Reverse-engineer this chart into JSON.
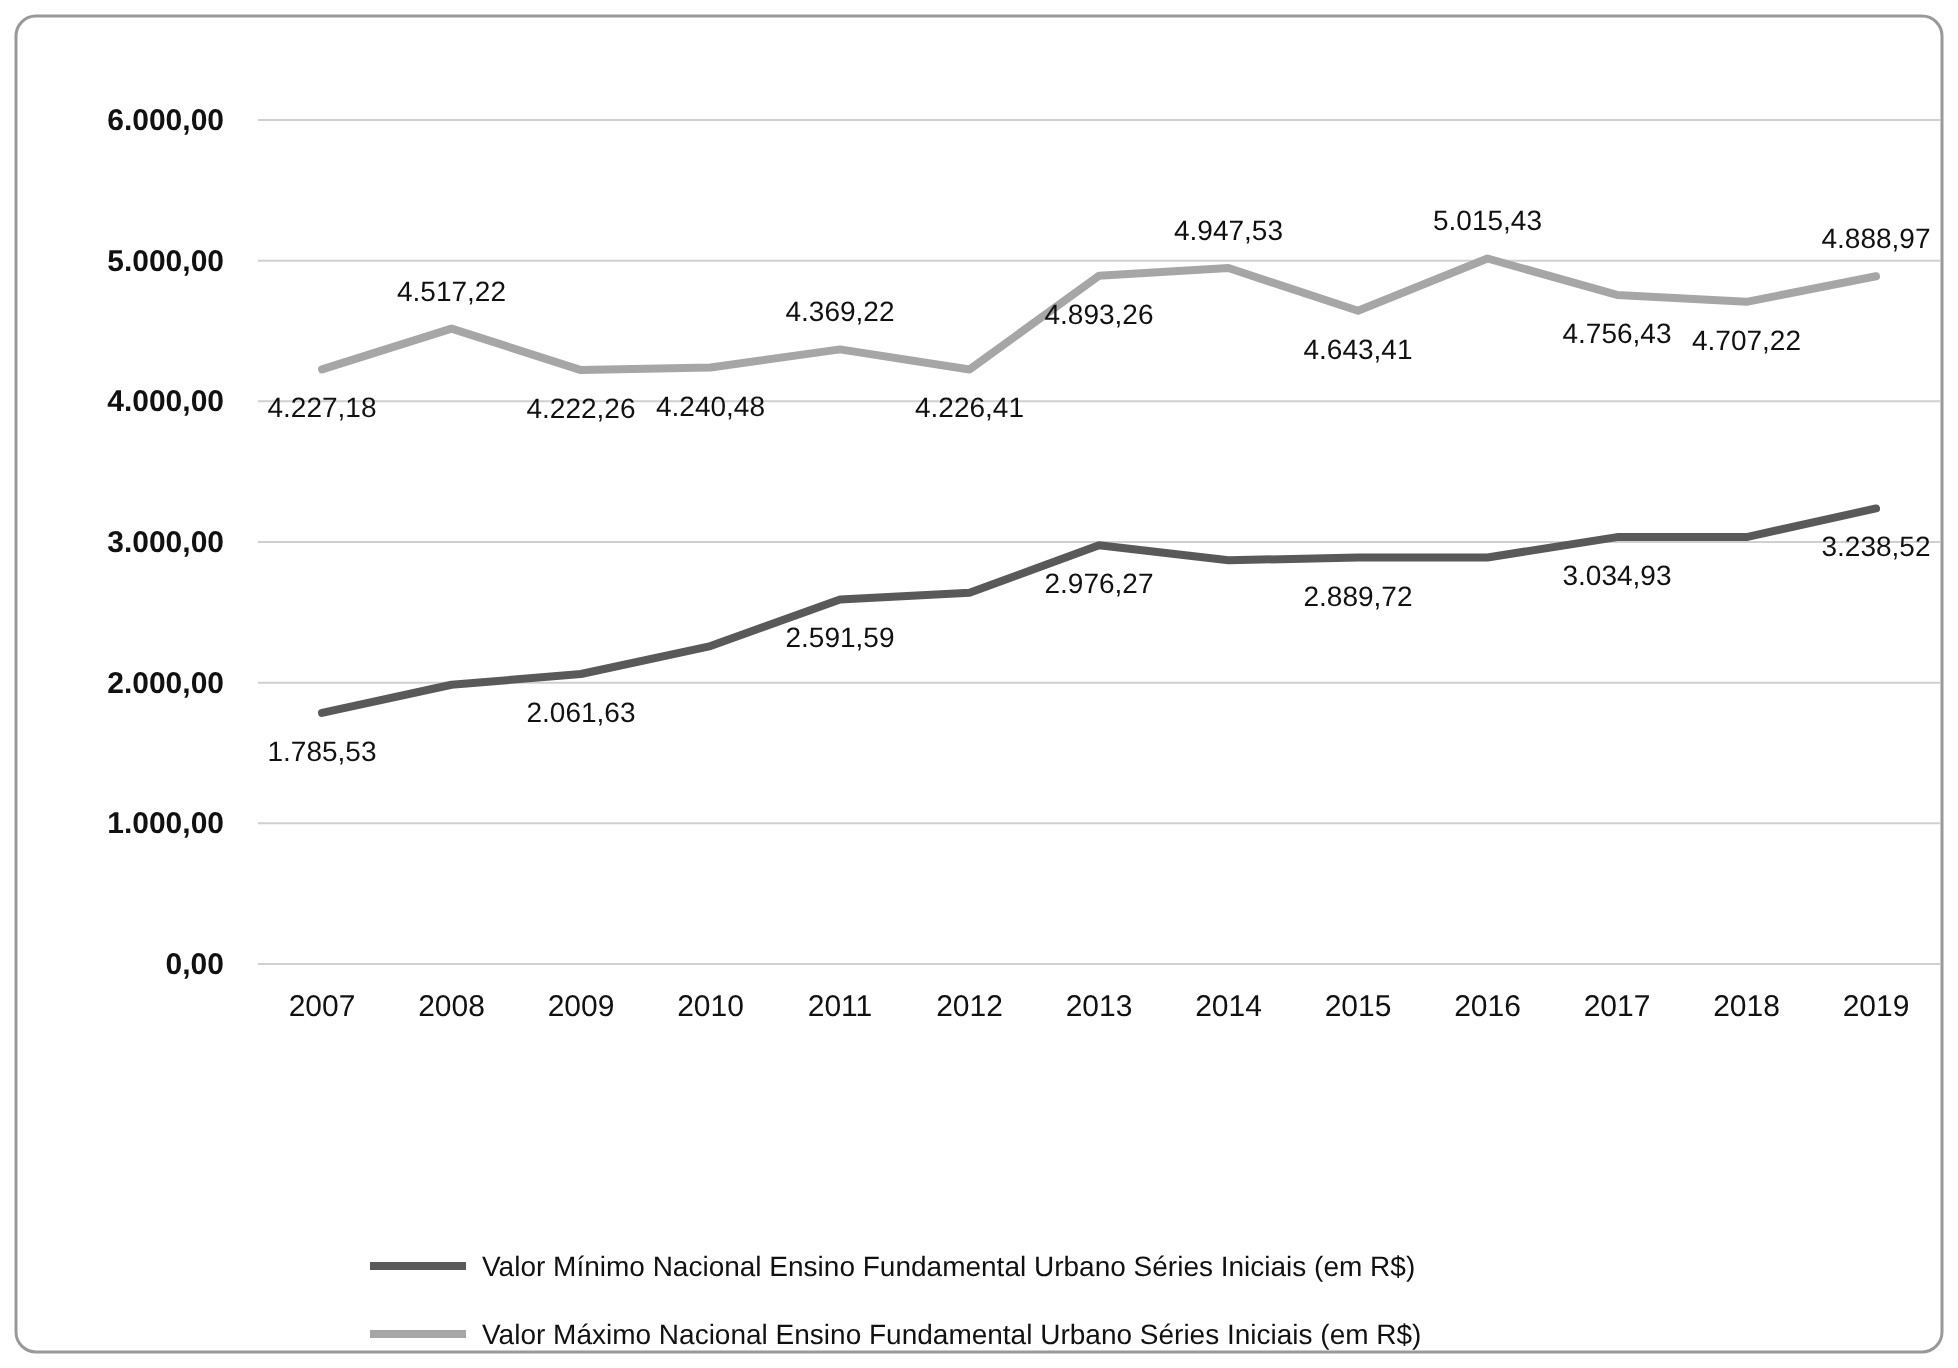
{
  "chart_data": {
    "type": "line",
    "categories": [
      "2007",
      "2008",
      "2009",
      "2010",
      "2011",
      "2012",
      "2013",
      "2014",
      "2015",
      "2016",
      "2017",
      "2018",
      "2019"
    ],
    "ylim": [
      0,
      6000
    ],
    "yticks": [
      {
        "value": 0,
        "label": "0,00"
      },
      {
        "value": 1000,
        "label": "1.000,00"
      },
      {
        "value": 2000,
        "label": "2.000,00"
      },
      {
        "value": 3000,
        "label": "3.000,00"
      },
      {
        "value": 4000,
        "label": "4.000,00"
      },
      {
        "value": 5000,
        "label": "5.000,00"
      },
      {
        "value": 6000,
        "label": "6.000,00"
      }
    ],
    "grid": "y",
    "legend": "bottom",
    "marker": "none",
    "line_style": "solid",
    "series": [
      {
        "name": "Valor Mínimo Nacional Ensino Fundamental Urbano Séries Iniciais (em R$)",
        "color": "#595959",
        "values": [
          1785.53,
          1985,
          2061.63,
          2260,
          2591.59,
          2640,
          2976.27,
          2870,
          2889.72,
          2890,
          3034.93,
          3035,
          3238.52
        ],
        "value_labels": [
          "1.785,53",
          null,
          "2.061,63",
          null,
          "2.591,59",
          null,
          "2.976,27",
          null,
          "2.889,72",
          null,
          "3.034,93",
          null,
          "3.238,52"
        ]
      },
      {
        "name": "Valor Máximo Nacional Ensino Fundamental Urbano Séries Iniciais (em R$)",
        "color": "#a6a6a6",
        "values": [
          4227.18,
          4517.22,
          4222.26,
          4240.48,
          4369.22,
          4226.41,
          4893.26,
          4947.53,
          4643.41,
          5015.43,
          4756.43,
          4707.22,
          4888.97
        ],
        "value_labels": [
          "4.227,18",
          "4.517,22",
          "4.222,26",
          "4.240,48",
          "4.369,22",
          "4.226,41",
          "4.893,26",
          "4.947,53",
          "4.643,41",
          "5.015,43",
          "4.756,43",
          "4.707,22",
          "4.888,97"
        ]
      }
    ]
  }
}
